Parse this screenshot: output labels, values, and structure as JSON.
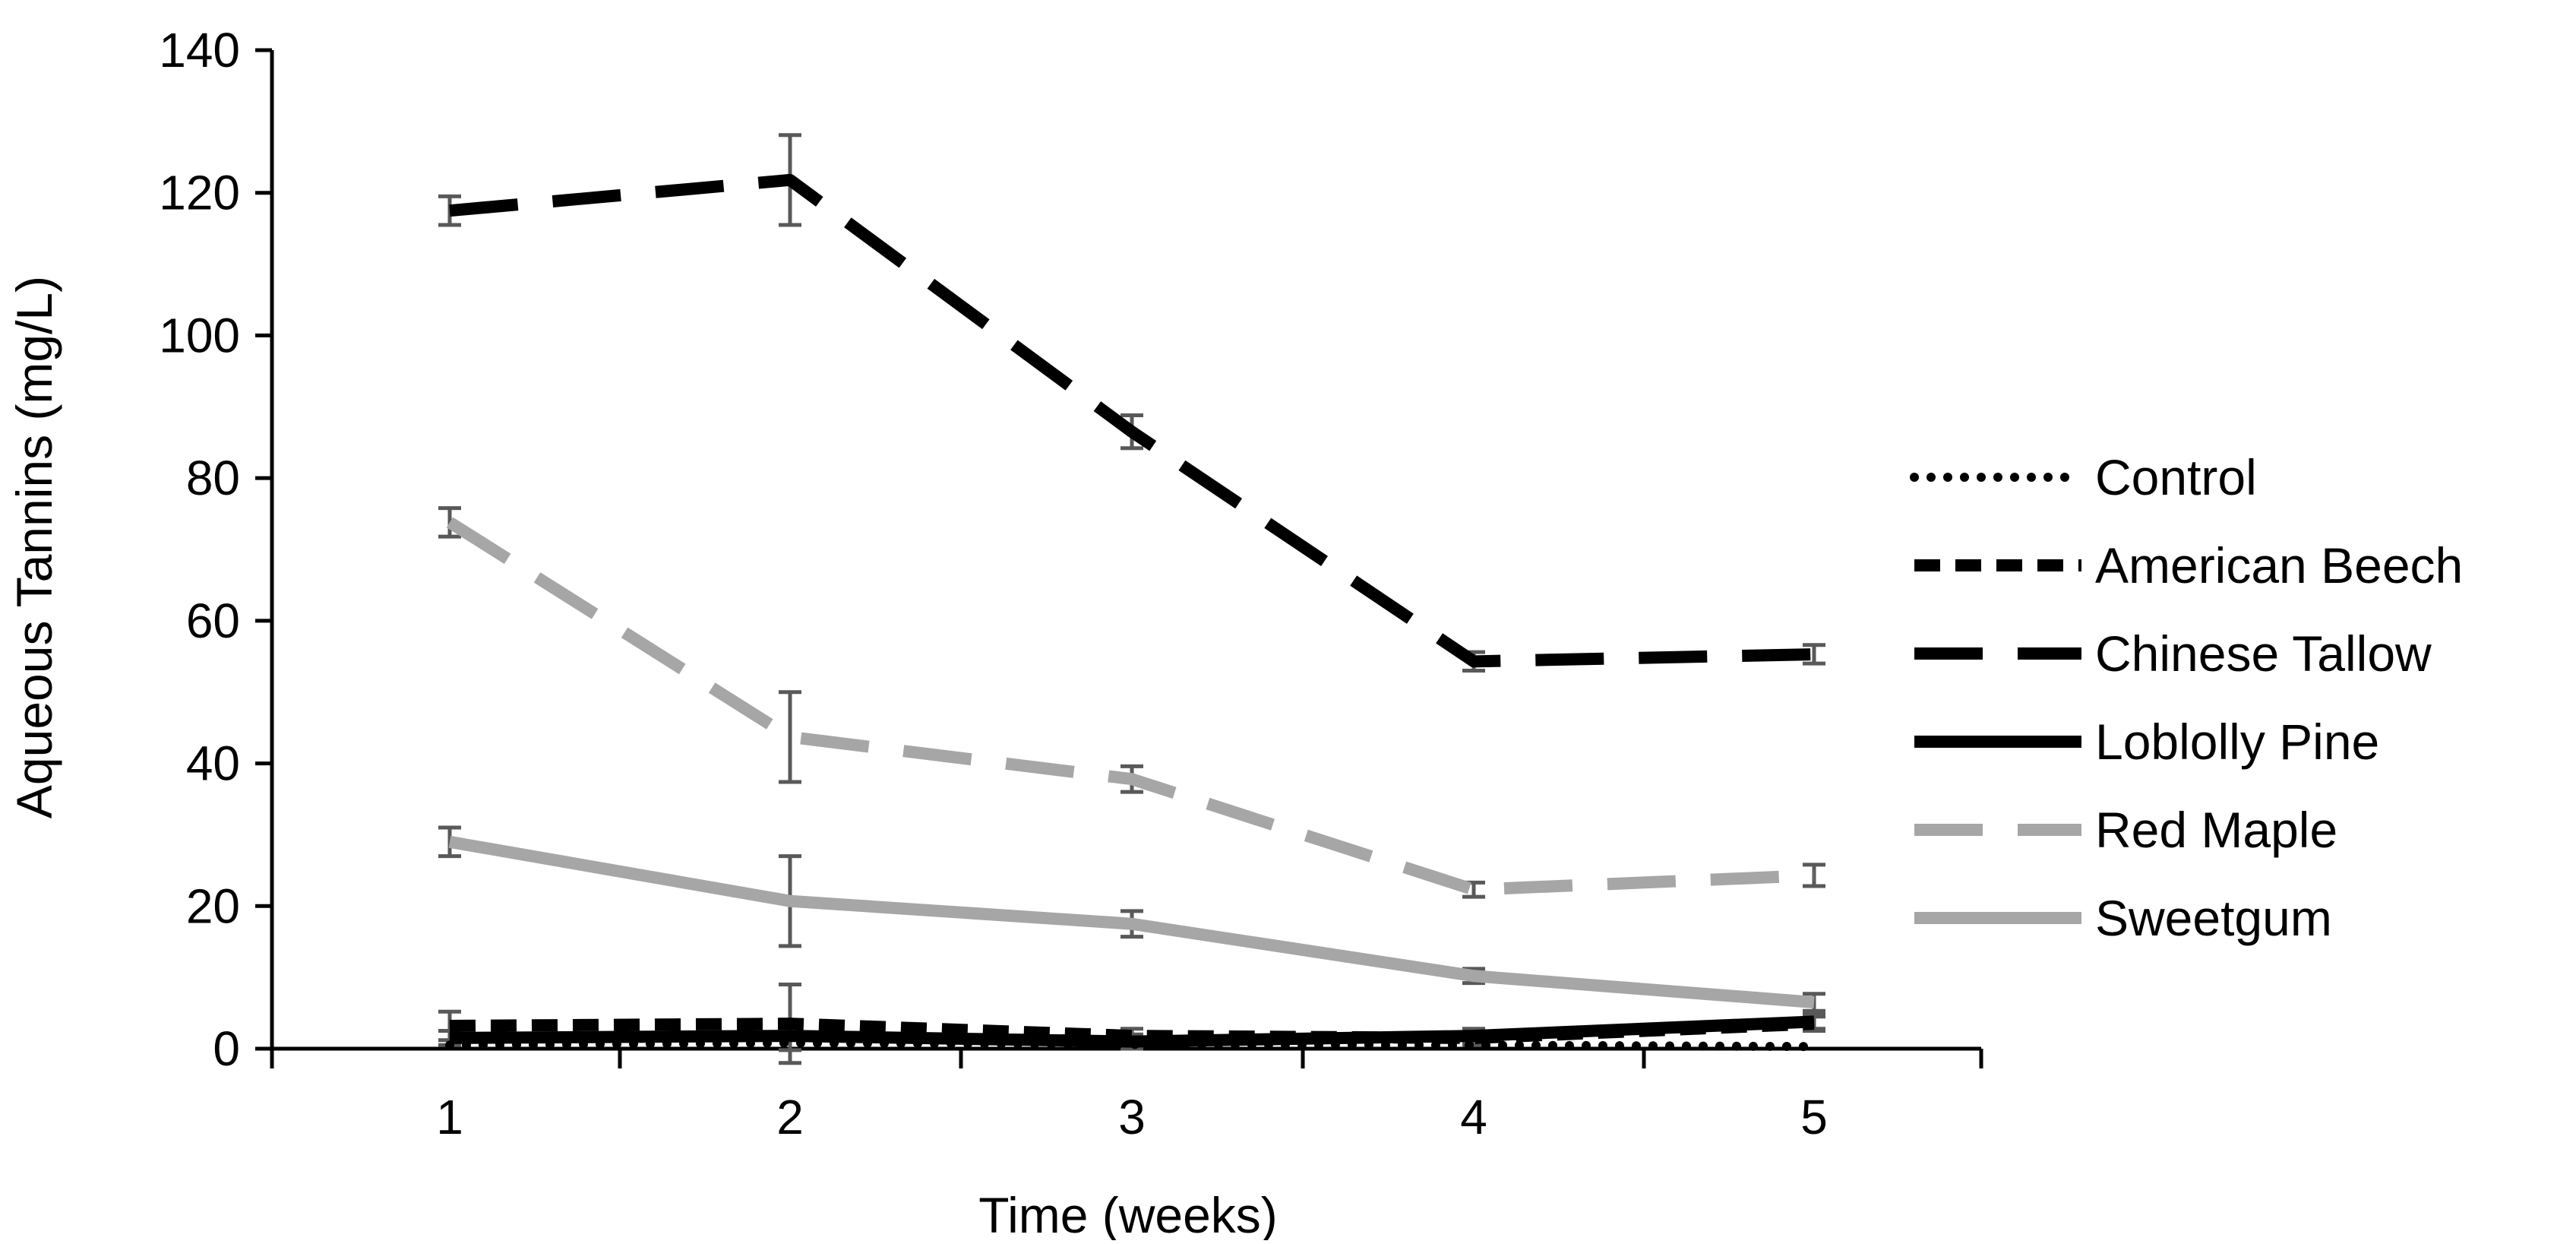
{
  "chart_data": {
    "type": "line",
    "title": "",
    "xlabel": "Time (weeks)",
    "ylabel": "Aqueous Tannins (mg/L)",
    "x": [
      1,
      2,
      3,
      4,
      5
    ],
    "x_tick_labels": [
      "1",
      "2",
      "3",
      "4",
      "5"
    ],
    "ylim": [
      0,
      140
    ],
    "y_ticks": [
      0,
      20,
      40,
      60,
      80,
      100,
      120,
      140
    ],
    "grid": false,
    "legend_position": "right",
    "series": [
      {
        "name": "Control",
        "style": "dotted",
        "color": "#000000",
        "values": [
          0.5,
          0.8,
          0.6,
          0.5,
          0.3
        ],
        "errors": [
          0,
          0,
          0,
          0,
          0
        ]
      },
      {
        "name": "American Beech",
        "style": "dashed",
        "color": "#000000",
        "values": [
          3.2,
          3.5,
          1.8,
          1.5,
          3.5
        ],
        "errors": [
          2.0,
          5.5,
          1.0,
          1.0,
          1.0
        ]
      },
      {
        "name": "Chinese Tallow",
        "style": "long-dash",
        "color": "#000000",
        "values": [
          117.5,
          121.8,
          86.5,
          54.3,
          55.3
        ],
        "errors": [
          2.0,
          6.3,
          2.3,
          1.3,
          1.3
        ]
      },
      {
        "name": "Loblolly Pine",
        "style": "solid",
        "color": "#000000",
        "values": [
          1.5,
          1.8,
          1.0,
          1.8,
          3.8
        ],
        "errors": [
          1.0,
          2.0,
          1.0,
          1.0,
          1.0
        ]
      },
      {
        "name": "Red Maple",
        "style": "long-dash",
        "color": "#a6a6a6",
        "values": [
          73.8,
          43.7,
          37.8,
          22.3,
          24.3
        ],
        "errors": [
          2.0,
          6.3,
          1.8,
          1.0,
          1.5
        ]
      },
      {
        "name": "Sweetgum",
        "style": "solid",
        "color": "#a6a6a6",
        "values": [
          29.0,
          20.7,
          17.5,
          10.2,
          6.5
        ],
        "errors": [
          2.0,
          6.3,
          1.8,
          1.0,
          1.2
        ]
      }
    ]
  }
}
